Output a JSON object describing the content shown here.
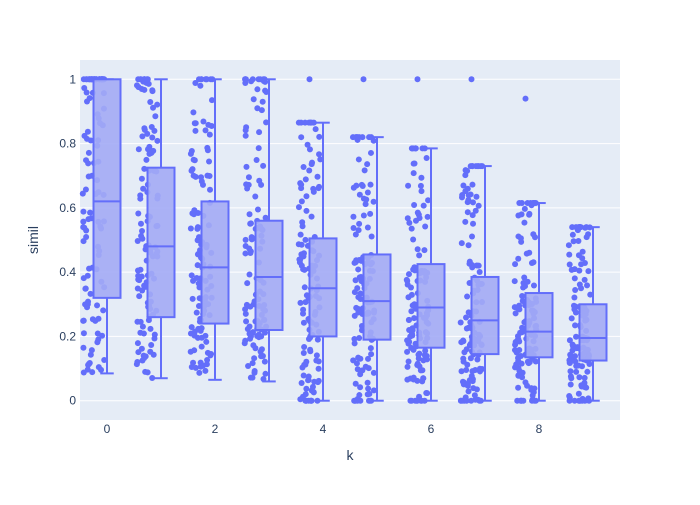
{
  "chart_data": {
    "type": "box",
    "title": "",
    "xlabel": "k",
    "ylabel": "simil",
    "xlim": [
      -0.5,
      9.5
    ],
    "ylim": [
      -0.06,
      1.06
    ],
    "x_ticks": [
      0,
      2,
      4,
      6,
      8
    ],
    "y_ticks": [
      0,
      0.2,
      0.4,
      0.6,
      0.8,
      1
    ],
    "grid": true,
    "legend": "none",
    "colors": {
      "plot_bg": "#e5ecf6",
      "grid": "#ffffff",
      "box_fill": "#a3abf5",
      "box_line": "#636efa",
      "points": "#636efa",
      "text": "#2a3f5f"
    },
    "boxes": [
      {
        "k": 0,
        "lower_fence": 0.085,
        "q1": 0.32,
        "median": 0.62,
        "q3": 1.0,
        "upper_fence": 1.0,
        "outliers": []
      },
      {
        "k": 1,
        "lower_fence": 0.07,
        "q1": 0.26,
        "median": 0.48,
        "q3": 0.725,
        "upper_fence": 1.0,
        "outliers": []
      },
      {
        "k": 2,
        "lower_fence": 0.065,
        "q1": 0.24,
        "median": 0.415,
        "q3": 0.62,
        "upper_fence": 1.0,
        "outliers": []
      },
      {
        "k": 3,
        "lower_fence": 0.06,
        "q1": 0.22,
        "median": 0.385,
        "q3": 0.56,
        "upper_fence": 1.0,
        "outliers": []
      },
      {
        "k": 4,
        "lower_fence": 0.0,
        "q1": 0.2,
        "median": 0.35,
        "q3": 0.505,
        "upper_fence": 0.865,
        "outliers": [
          1.0
        ]
      },
      {
        "k": 5,
        "lower_fence": 0.0,
        "q1": 0.19,
        "median": 0.31,
        "q3": 0.455,
        "upper_fence": 0.82,
        "outliers": [
          1.0
        ]
      },
      {
        "k": 6,
        "lower_fence": 0.0,
        "q1": 0.165,
        "median": 0.29,
        "q3": 0.425,
        "upper_fence": 0.785,
        "outliers": [
          1.0
        ]
      },
      {
        "k": 7,
        "lower_fence": 0.0,
        "q1": 0.145,
        "median": 0.25,
        "q3": 0.385,
        "upper_fence": 0.73,
        "outliers": [
          1.0
        ]
      },
      {
        "k": 8,
        "lower_fence": 0.0,
        "q1": 0.135,
        "median": 0.215,
        "q3": 0.335,
        "upper_fence": 0.615,
        "outliers": [
          0.94
        ]
      },
      {
        "k": 9,
        "lower_fence": 0.0,
        "q1": 0.125,
        "median": 0.195,
        "q3": 0.3,
        "upper_fence": 0.54,
        "outliers": []
      }
    ]
  }
}
